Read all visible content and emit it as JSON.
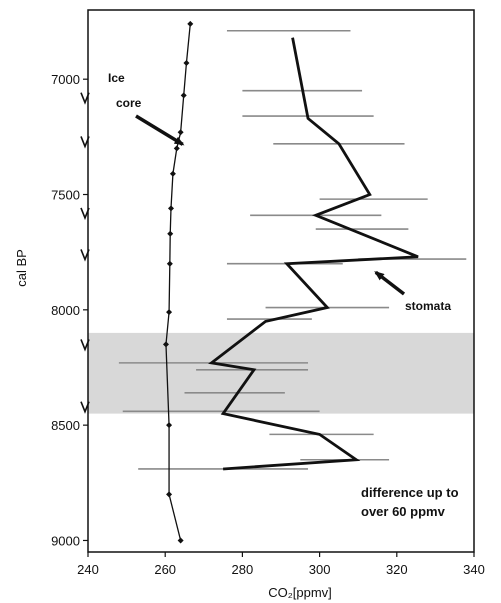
{
  "chart_data": {
    "type": "line",
    "xlabel": "CO₂[ppmv]",
    "ylabel": "cal BP",
    "xlim": [
      240,
      340
    ],
    "ylim": [
      6700,
      9050
    ],
    "y_inverted": true,
    "xticks": [
      240,
      260,
      280,
      300,
      320,
      340
    ],
    "yticks": [
      7000,
      7500,
      8000,
      8500,
      9000
    ],
    "shaded_band": {
      "y_from": 8100,
      "y_to": 8450,
      "color": "#d8d8d8"
    },
    "series": [
      {
        "key": "ice",
        "color": "#111111",
        "marker": "diamond",
        "points": [
          {
            "x": 266.5,
            "y": 6760
          },
          {
            "x": 265.5,
            "y": 6930
          },
          {
            "x": 264.8,
            "y": 7070
          },
          {
            "x": 264.0,
            "y": 7230
          },
          {
            "x": 263.0,
            "y": 7300
          },
          {
            "x": 262.0,
            "y": 7410
          },
          {
            "x": 261.5,
            "y": 7560
          },
          {
            "x": 261.3,
            "y": 7670
          },
          {
            "x": 261.2,
            "y": 7800
          },
          {
            "x": 261.0,
            "y": 8010
          },
          {
            "x": 260.2,
            "y": 8150
          },
          {
            "x": 261.0,
            "y": 8500
          },
          {
            "x": 261.0,
            "y": 8800
          },
          {
            "x": 264.0,
            "y": 9000
          }
        ]
      },
      {
        "key": "stomata",
        "color": "#111111",
        "points": [
          {
            "x": 293,
            "y": 6820
          },
          {
            "x": 297,
            "y": 7170
          },
          {
            "x": 305,
            "y": 7280
          },
          {
            "x": 313,
            "y": 7500
          },
          {
            "x": 299,
            "y": 7590
          },
          {
            "x": 325.5,
            "y": 7770
          },
          {
            "x": 291.5,
            "y": 7800
          },
          {
            "x": 302,
            "y": 7990
          },
          {
            "x": 286,
            "y": 8050
          },
          {
            "x": 272,
            "y": 8230
          },
          {
            "x": 283,
            "y": 8260
          },
          {
            "x": 275,
            "y": 8450
          },
          {
            "x": 300,
            "y": 8540
          },
          {
            "x": 309.5,
            "y": 8650
          },
          {
            "x": 275,
            "y": 8690
          }
        ],
        "error_bars": [
          {
            "y": 6790,
            "x_min": 276,
            "x_max": 308
          },
          {
            "y": 7050,
            "x_min": 280,
            "x_max": 311
          },
          {
            "y": 7160,
            "x_min": 280,
            "x_max": 314
          },
          {
            "y": 7280,
            "x_min": 288,
            "x_max": 322
          },
          {
            "y": 7520,
            "x_min": 300,
            "x_max": 328
          },
          {
            "y": 7590,
            "x_min": 282,
            "x_max": 316
          },
          {
            "y": 7650,
            "x_min": 299,
            "x_max": 323
          },
          {
            "y": 7780,
            "x_min": 310,
            "x_max": 338
          },
          {
            "y": 7800,
            "x_min": 276,
            "x_max": 306
          },
          {
            "y": 7990,
            "x_min": 286,
            "x_max": 318
          },
          {
            "y": 8040,
            "x_min": 276,
            "x_max": 298
          },
          {
            "y": 8230,
            "x_min": 248,
            "x_max": 297
          },
          {
            "y": 8260,
            "x_min": 268,
            "x_max": 297
          },
          {
            "y": 8360,
            "x_min": 265,
            "x_max": 291
          },
          {
            "y": 8440,
            "x_min": 249,
            "x_max": 300
          },
          {
            "y": 8540,
            "x_min": 287,
            "x_max": 314
          },
          {
            "y": 8650,
            "x_min": 295,
            "x_max": 318
          },
          {
            "y": 8690,
            "x_min": 253,
            "x_max": 297
          }
        ]
      }
    ],
    "side_markers_y": [
      7080,
      7270,
      7580,
      7760,
      8150,
      8420
    ],
    "annotations": [
      {
        "key": "ice_core",
        "lines": [
          "Ice",
          "core"
        ],
        "arrow_to": {
          "x": 263.5,
          "y": 7300
        }
      },
      {
        "key": "stomata",
        "lines": [
          "stomata"
        ],
        "arrow_to": {
          "x": 313,
          "y": 7820
        }
      },
      {
        "key": "difference",
        "lines": [
          "difference up to",
          "over 60 ppmv"
        ]
      }
    ]
  }
}
